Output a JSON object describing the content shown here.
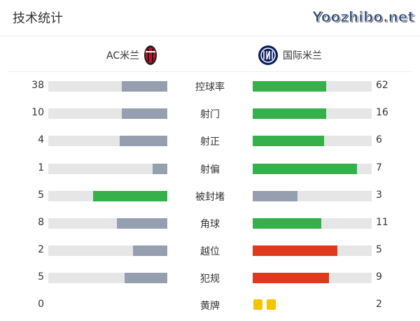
{
  "title": "技术统计",
  "home": {
    "name": "AC米兰",
    "logo": "ac-milan-crest"
  },
  "away": {
    "name": "国际米兰",
    "logo": "inter-crest"
  },
  "colors": {
    "better": "#35b04a",
    "worse": "#959fb0",
    "foul": "#e03a1e",
    "track": "#e6e6e6",
    "card": "#f5c400"
  },
  "stats": [
    {
      "label": "控球率",
      "home": 38,
      "away": 62,
      "type": "good"
    },
    {
      "label": "射门",
      "home": 10,
      "away": 16,
      "type": "good"
    },
    {
      "label": "射正",
      "home": 4,
      "away": 6,
      "type": "good"
    },
    {
      "label": "射偏",
      "home": 1,
      "away": 7,
      "type": "good"
    },
    {
      "label": "被封堵",
      "home": 5,
      "away": 3,
      "type": "good"
    },
    {
      "label": "角球",
      "home": 8,
      "away": 11,
      "type": "good"
    },
    {
      "label": "越位",
      "home": 2,
      "away": 5,
      "type": "bad"
    },
    {
      "label": "犯规",
      "home": 5,
      "away": 9,
      "type": "bad"
    }
  ],
  "yellow": {
    "label": "黄牌",
    "home": 0,
    "away": 2
  },
  "watermark": "Yoozhibo.net"
}
